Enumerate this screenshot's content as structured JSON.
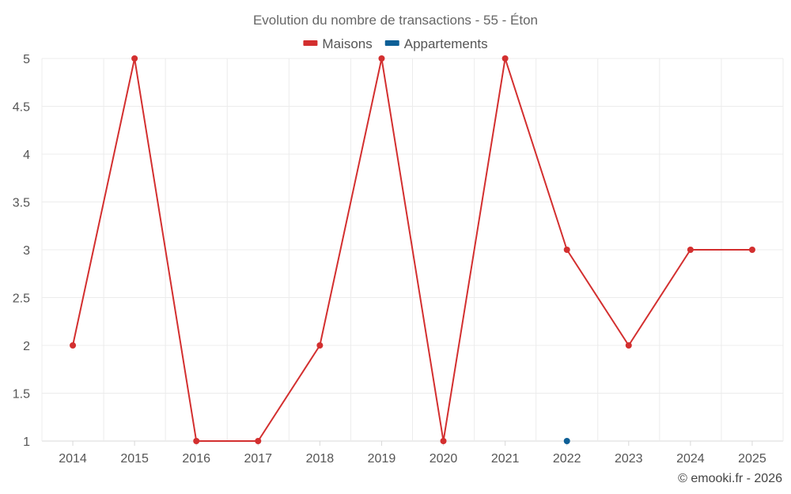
{
  "chart_data": {
    "type": "line",
    "title": "Evolution du nombre de transactions - 55 - Éton",
    "categories": [
      "2014",
      "2015",
      "2016",
      "2017",
      "2018",
      "2019",
      "2020",
      "2021",
      "2022",
      "2023",
      "2024",
      "2025"
    ],
    "series": [
      {
        "name": "Maisons",
        "color": "#d32f2f",
        "values": [
          2,
          5,
          1,
          1,
          2,
          5,
          1,
          5,
          3,
          2,
          3,
          3
        ]
      },
      {
        "name": "Appartements",
        "color": "#0d5f96",
        "values": [
          null,
          null,
          null,
          null,
          null,
          null,
          null,
          null,
          1,
          null,
          null,
          null
        ]
      }
    ],
    "ylim": [
      1,
      5
    ],
    "yticks": [
      "1",
      "1.5",
      "2",
      "2.5",
      "3",
      "3.5",
      "4",
      "4.5",
      "5"
    ],
    "xlabel": "",
    "ylabel": "",
    "grid": true,
    "legend_position": "top-center"
  },
  "credit": "© emooki.fr - 2026"
}
